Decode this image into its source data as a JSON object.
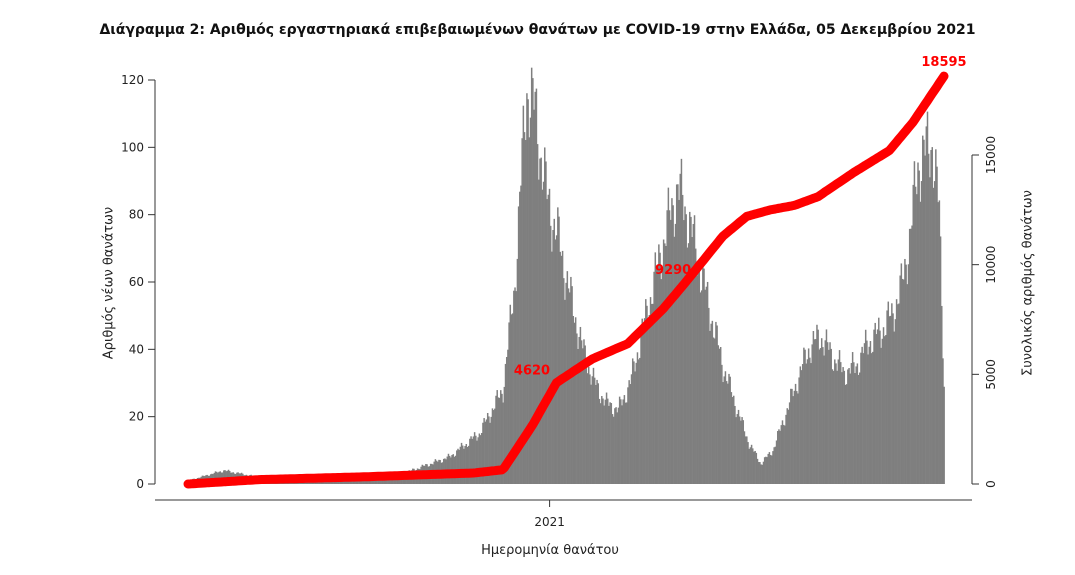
{
  "chart_data": {
    "type": "bar",
    "title": "Διάγραμμα 2: Αριθμός εργαστηριακά επιβεβαιωμένων θανάτων με COVID-19 στην Ελλάδα, 05 Δεκεμβρίου 2021",
    "xlabel": "Ημερομηνία θανάτου",
    "ylabel": "Αριθμός νέων θανάτων",
    "ylabel_right": "Συνολικός αριθμός θανάτων",
    "x_tick_labels": [
      "2021"
    ],
    "ylim": [
      0,
      125
    ],
    "yticks": [
      0,
      20,
      40,
      60,
      80,
      100,
      120
    ],
    "ylim_right": [
      0,
      19800
    ],
    "yticks_right": [
      0,
      5000,
      10000,
      15000
    ],
    "grid": false,
    "bar_color": "#7f7f7f",
    "cumulative_color": "#ff0000",
    "daily_deaths_keypoints": [
      {
        "day": 0,
        "value": 1
      },
      {
        "day": 30,
        "value": 4
      },
      {
        "day": 60,
        "value": 2
      },
      {
        "day": 120,
        "value": 1
      },
      {
        "day": 180,
        "value": 3
      },
      {
        "day": 220,
        "value": 8
      },
      {
        "day": 245,
        "value": 15
      },
      {
        "day": 265,
        "value": 28
      },
      {
        "day": 275,
        "value": 60
      },
      {
        "day": 281,
        "value": 95
      },
      {
        "day": 285,
        "value": 118
      },
      {
        "day": 292,
        "value": 110
      },
      {
        "day": 302,
        "value": 85
      },
      {
        "day": 312,
        "value": 72
      },
      {
        "day": 322,
        "value": 55
      },
      {
        "day": 332,
        "value": 40
      },
      {
        "day": 342,
        "value": 30
      },
      {
        "day": 352,
        "value": 24
      },
      {
        "day": 362,
        "value": 22
      },
      {
        "day": 372,
        "value": 30
      },
      {
        "day": 382,
        "value": 45
      },
      {
        "day": 392,
        "value": 60
      },
      {
        "day": 402,
        "value": 75
      },
      {
        "day": 412,
        "value": 88
      },
      {
        "day": 420,
        "value": 80
      },
      {
        "day": 430,
        "value": 65
      },
      {
        "day": 440,
        "value": 50
      },
      {
        "day": 450,
        "value": 35
      },
      {
        "day": 462,
        "value": 22
      },
      {
        "day": 472,
        "value": 12
      },
      {
        "day": 482,
        "value": 6
      },
      {
        "day": 492,
        "value": 10
      },
      {
        "day": 502,
        "value": 20
      },
      {
        "day": 512,
        "value": 30
      },
      {
        "day": 522,
        "value": 40
      },
      {
        "day": 532,
        "value": 44
      },
      {
        "day": 542,
        "value": 38
      },
      {
        "day": 552,
        "value": 33
      },
      {
        "day": 562,
        "value": 35
      },
      {
        "day": 572,
        "value": 42
      },
      {
        "day": 582,
        "value": 45
      },
      {
        "day": 592,
        "value": 50
      },
      {
        "day": 600,
        "value": 58
      },
      {
        "day": 608,
        "value": 75
      },
      {
        "day": 614,
        "value": 95
      },
      {
        "day": 620,
        "value": 98
      },
      {
        "day": 626,
        "value": 102
      },
      {
        "day": 632,
        "value": 80
      },
      {
        "day": 636,
        "value": 30
      }
    ],
    "cumulative_keypoints": [
      {
        "day": 0,
        "value": 0
      },
      {
        "day": 60,
        "value": 200
      },
      {
        "day": 150,
        "value": 330
      },
      {
        "day": 240,
        "value": 500
      },
      {
        "day": 265,
        "value": 650
      },
      {
        "day": 290,
        "value": 2700
      },
      {
        "day": 310,
        "value": 4620
      },
      {
        "day": 340,
        "value": 5700
      },
      {
        "day": 370,
        "value": 6400
      },
      {
        "day": 400,
        "value": 8000
      },
      {
        "day": 420,
        "value": 9290
      },
      {
        "day": 450,
        "value": 11300
      },
      {
        "day": 470,
        "value": 12200
      },
      {
        "day": 490,
        "value": 12500
      },
      {
        "day": 510,
        "value": 12700
      },
      {
        "day": 530,
        "value": 13100
      },
      {
        "day": 560,
        "value": 14200
      },
      {
        "day": 590,
        "value": 15200
      },
      {
        "day": 610,
        "value": 16500
      },
      {
        "day": 636,
        "value": 18595
      }
    ],
    "annotations": [
      {
        "day": 308,
        "value": 4620,
        "text": "4620"
      },
      {
        "day": 420,
        "value": 9290,
        "text": "9290"
      },
      {
        "day": 636,
        "value": 18595,
        "text": "18595"
      }
    ],
    "x_tick_day": 300,
    "total_days": 637
  }
}
